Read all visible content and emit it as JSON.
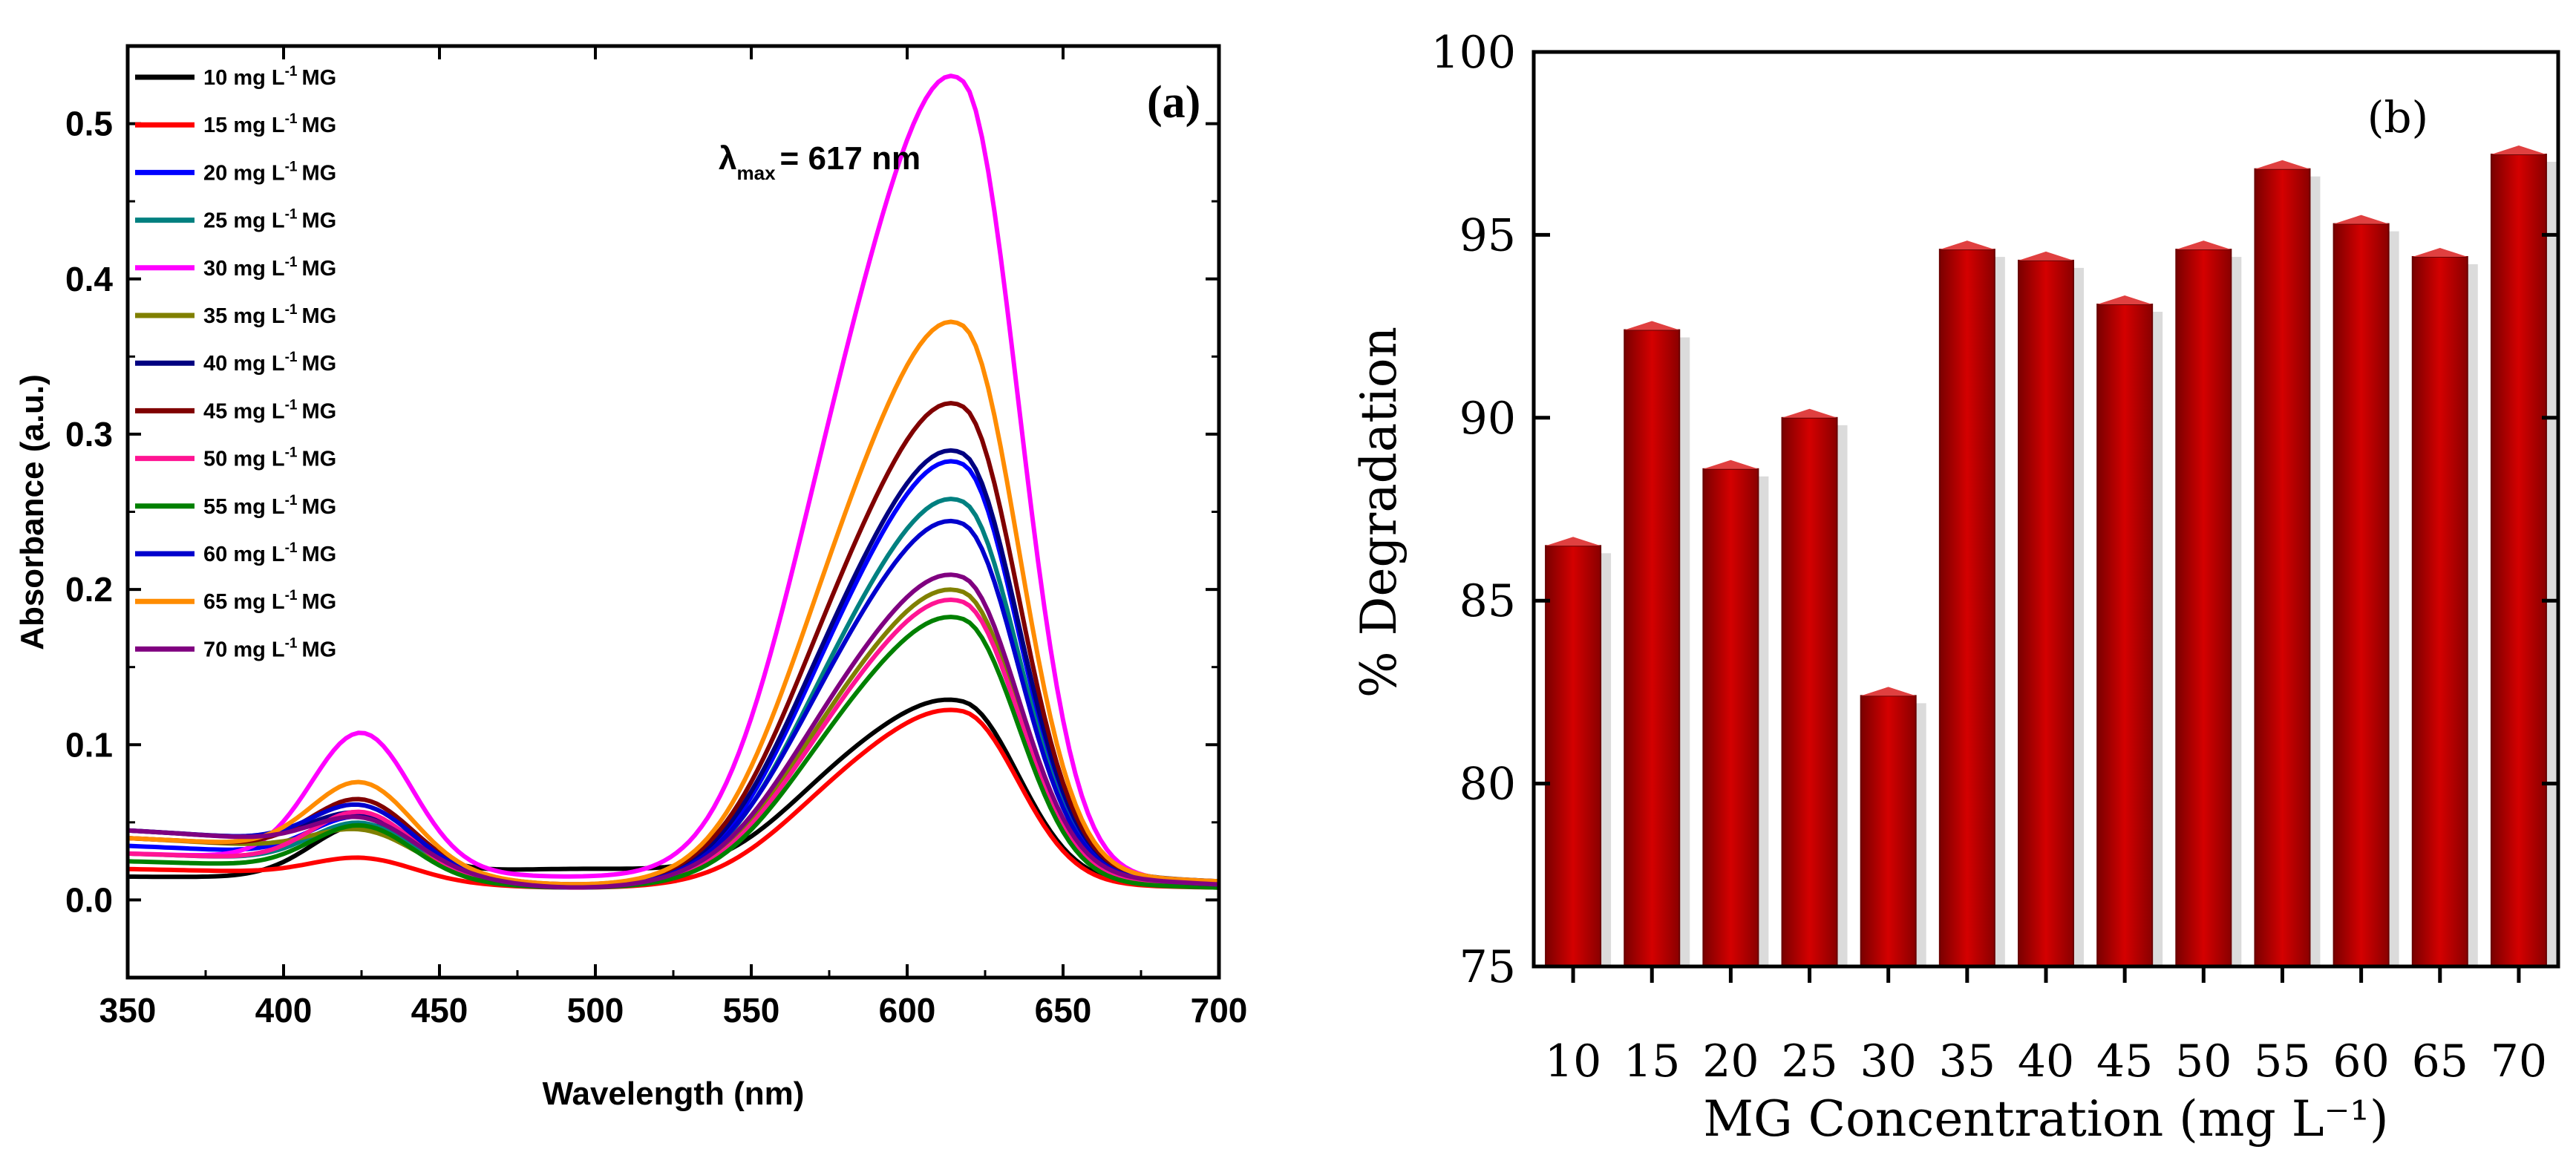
{
  "chart_data": [
    {
      "panel": "(a)",
      "type": "line",
      "xlabel": "Wavelength (nm)",
      "ylabel": "Absorbance (a.u.)",
      "xlim": [
        350,
        700
      ],
      "ylim": [
        -0.05,
        0.55
      ],
      "xticks": [
        350,
        400,
        450,
        500,
        550,
        600,
        650,
        700
      ],
      "xtick_labels": [
        "350",
        "400",
        "450",
        "500",
        "550",
        "600",
        "650",
        "700"
      ],
      "yticks": [
        0.0,
        0.1,
        0.2,
        0.3,
        0.4,
        0.5
      ],
      "ytick_labels": [
        "0.0",
        "0.1",
        "0.2",
        "0.3",
        "0.4",
        "0.5"
      ],
      "annotation": {
        "main": "λ",
        "sub": "max",
        "rest": "= 617 nm"
      },
      "legend_position": "top-left",
      "legend_prefix_unit": "mg L",
      "legend_superscript": "-1",
      "legend_suffix": "MG",
      "series": [
        {
          "name": "10 mg L-1 MG",
          "conc": "10",
          "color": "#000000",
          "base350": 0.015,
          "peak425": 0.047,
          "trough": 0.02,
          "peak618": 0.131,
          "end700": 0.01
        },
        {
          "name": "15 mg L-1 MG",
          "conc": "15",
          "color": "#ff0000",
          "base350": 0.02,
          "peak425": 0.03,
          "trough": 0.008,
          "peak618": 0.114,
          "end700": 0.008
        },
        {
          "name": "20 mg L-1 MG",
          "conc": "20",
          "color": "#0000ff",
          "base350": 0.035,
          "peak425": 0.06,
          "trough": 0.008,
          "peak618": 0.262,
          "end700": 0.01
        },
        {
          "name": "25 mg L-1 MG",
          "conc": "25",
          "color": "#008080",
          "base350": 0.03,
          "peak425": 0.055,
          "trough": 0.008,
          "peak618": 0.24,
          "end700": 0.01
        },
        {
          "name": "30 mg L-1 MG",
          "conc": "30",
          "color": "#ff00ff",
          "base350": 0.03,
          "peak425": 0.111,
          "trough": 0.015,
          "peak618": 0.505,
          "end700": 0.012
        },
        {
          "name": "35 mg L-1 MG",
          "conc": "35",
          "color": "#808000",
          "base350": 0.04,
          "peak425": 0.053,
          "trough": 0.008,
          "peak618": 0.182,
          "end700": 0.01
        },
        {
          "name": "40 mg L-1 MG",
          "conc": "40",
          "color": "#000080",
          "base350": 0.045,
          "peak425": 0.065,
          "trough": 0.008,
          "peak618": 0.265,
          "end700": 0.012
        },
        {
          "name": "45 mg L-1 MG",
          "conc": "45",
          "color": "#800000",
          "base350": 0.04,
          "peak425": 0.072,
          "trough": 0.01,
          "peak618": 0.297,
          "end700": 0.012
        },
        {
          "name": "50 mg L-1 MG",
          "conc": "50",
          "color": "#ff1493",
          "base350": 0.03,
          "peak425": 0.062,
          "trough": 0.008,
          "peak618": 0.178,
          "end700": 0.01
        },
        {
          "name": "55 mg L-1 MG",
          "conc": "55",
          "color": "#008000",
          "base350": 0.025,
          "peak425": 0.052,
          "trough": 0.008,
          "peak618": 0.17,
          "end700": 0.008
        },
        {
          "name": "60 mg L-1 MG",
          "conc": "60",
          "color": "#0000cd",
          "base350": 0.045,
          "peak425": 0.07,
          "trough": 0.008,
          "peak618": 0.223,
          "end700": 0.01
        },
        {
          "name": "65 mg L-1 MG",
          "conc": "65",
          "color": "#ff8c00",
          "base350": 0.04,
          "peak425": 0.083,
          "trough": 0.01,
          "peak618": 0.347,
          "end700": 0.012
        },
        {
          "name": "70 mg L-1 MG",
          "conc": "70",
          "color": "#800080",
          "base350": 0.045,
          "peak425": 0.062,
          "trough": 0.008,
          "peak618": 0.19,
          "end700": 0.01
        }
      ]
    },
    {
      "panel": "(b)",
      "type": "bar",
      "xlabel": "MG Concentration (mg L⁻¹)",
      "ylabel": "% Degradation",
      "ylim": [
        75,
        100
      ],
      "yticks": [
        75,
        80,
        85,
        90,
        95,
        100
      ],
      "ytick_labels": [
        "75",
        "80",
        "85",
        "90",
        "95",
        "100"
      ],
      "categories": [
        "10",
        "15",
        "20",
        "25",
        "30",
        "35",
        "40",
        "45",
        "50",
        "55",
        "60",
        "65",
        "70"
      ],
      "values": [
        86.5,
        92.4,
        88.6,
        90.0,
        82.4,
        94.6,
        94.3,
        93.1,
        94.6,
        96.8,
        95.3,
        94.4,
        97.2
      ],
      "bar_color": "#c00000"
    }
  ]
}
